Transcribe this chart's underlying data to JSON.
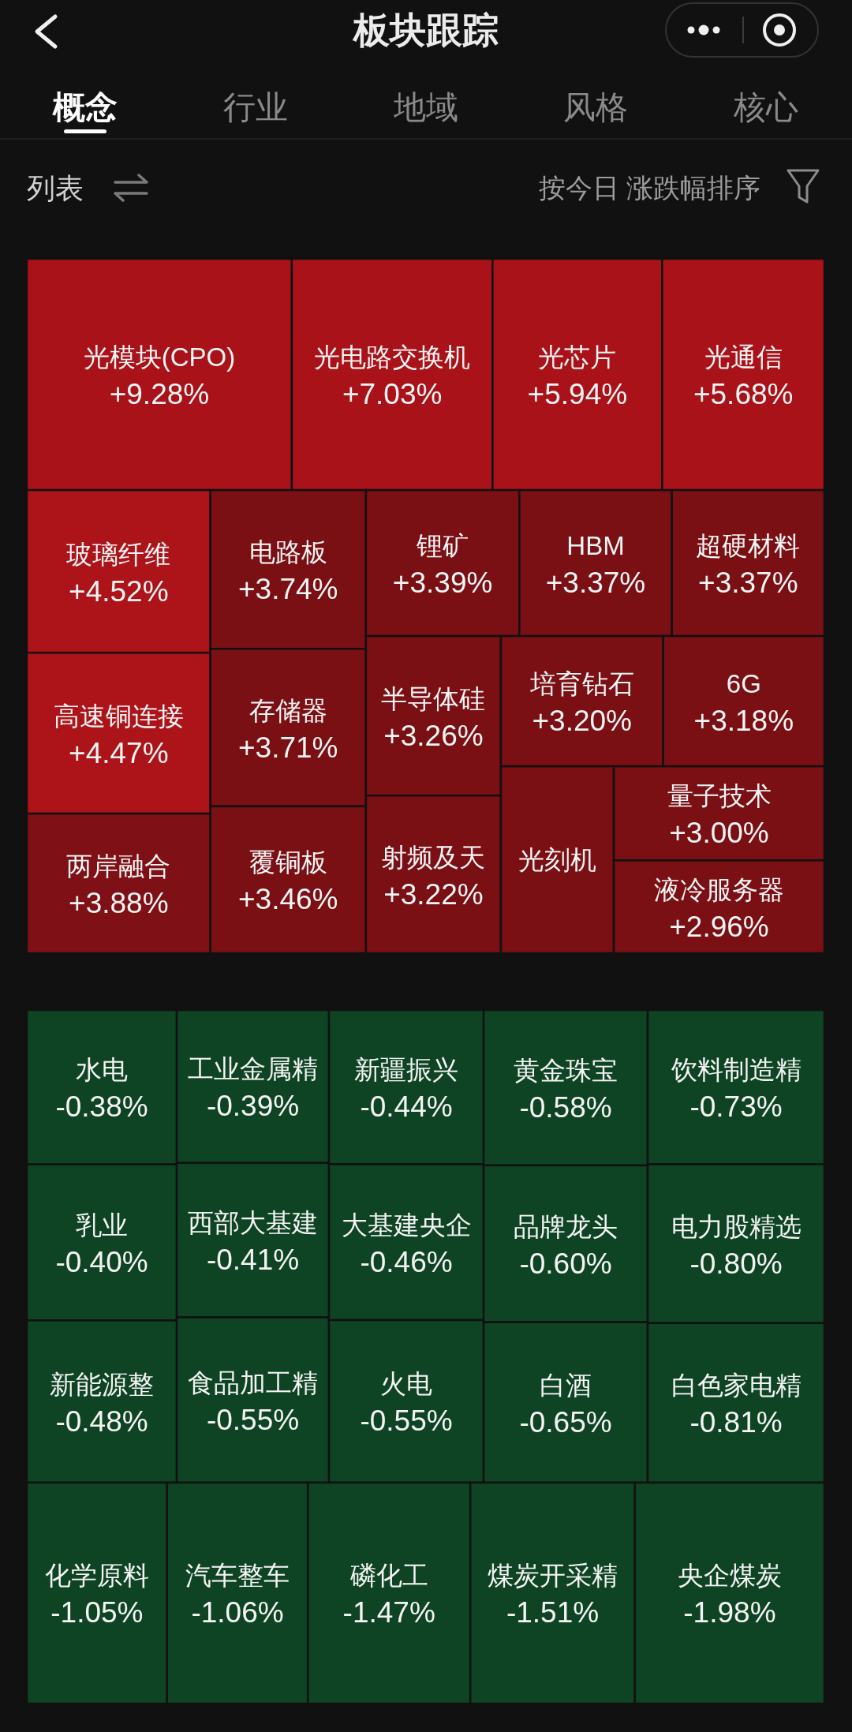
{
  "chart_data": {
    "type": "other",
    "title": "板块跟踪",
    "annotations": [
      "概念",
      "行业",
      "地域",
      "风格",
      "核心",
      "列表",
      "按今日 涨跌幅排序"
    ],
    "categories": [
      "光模块(CPO)",
      "光电路交换机",
      "光芯片",
      "光通信",
      "玻璃纤维",
      "高速铜连接",
      "两岸融合",
      "电路板",
      "存储器",
      "覆铜板",
      "锂矿",
      "HBM",
      "超硬材料",
      "半导体硅",
      "射频及天",
      "培育钻石",
      "6G",
      "光刻机",
      "量子技术",
      "液冷服务器",
      "水电",
      "工业金属精",
      "新疆振兴",
      "黄金珠宝",
      "饮料制造精",
      "乳业",
      "西部大基建",
      "大基建央企",
      "品牌龙头",
      "电力股精选",
      "新能源整",
      "食品加工精",
      "火电",
      "白酒",
      "白色家电精",
      "化学原料",
      "汽车整车",
      "磷化工",
      "煤炭开采精",
      "央企煤炭"
    ],
    "values": [
      9.28,
      7.03,
      5.94,
      5.68,
      4.52,
      4.47,
      3.88,
      3.74,
      3.71,
      3.46,
      3.39,
      3.37,
      3.37,
      3.26,
      3.22,
      3.2,
      3.18,
      null,
      3.0,
      2.96,
      -0.38,
      -0.39,
      -0.44,
      -0.58,
      -0.73,
      -0.4,
      -0.41,
      -0.46,
      -0.6,
      -0.8,
      -0.48,
      -0.55,
      -0.55,
      -0.65,
      -0.81,
      -1.05,
      -1.06,
      -1.47,
      -1.51,
      -1.98
    ],
    "value_labels": [
      "+9.28%",
      "+7.03%",
      "+5.94%",
      "+5.68%",
      "+4.52%",
      "+4.47%",
      "+3.88%",
      "+3.74%",
      "+3.71%",
      "+3.46%",
      "+3.39%",
      "+3.37%",
      "+3.37%",
      "+3.26%",
      "+3.22%",
      "+3.20%",
      "+3.18%",
      null,
      "+3.00%",
      "+2.96%",
      "-0.38%",
      "-0.39%",
      "-0.44%",
      "-0.58%",
      "-0.73%",
      "-0.40%",
      "-0.41%",
      "-0.46%",
      "-0.60%",
      "-0.80%",
      "-0.48%",
      "-0.55%",
      "-0.55%",
      "-0.65%",
      "-0.81%",
      "-1.05%",
      "-1.06%",
      "-1.47%",
      "-1.51%",
      "-1.98%"
    ],
    "colors": [
      "#a81218",
      "#a81218",
      "#a81218",
      "#a81218",
      "#ac1419",
      "#ac1419",
      "#7f1116",
      "#7a0f14",
      "#7a0f14",
      "#7a0f14",
      "#7a0f14",
      "#7a0f14",
      "#7a0f14",
      "#7a0f14",
      "#7a0f14",
      "#7a0f14",
      "#7a0f14",
      "#7a0f14",
      "#7a0f14",
      "#7a0f14",
      "#0e4423",
      "#0e4423",
      "#0e4423",
      "#0e4423",
      "#0e4423",
      "#0e4423",
      "#0e4423",
      "#0e4423",
      "#0e4423",
      "#0e4423",
      "#0e4423",
      "#0e4423",
      "#0e4423",
      "#0e4423",
      "#0e4423",
      "#0e4423",
      "#0e4423",
      "#0e4423",
      "#0e4423",
      "#0e4423"
    ]
  }
}
